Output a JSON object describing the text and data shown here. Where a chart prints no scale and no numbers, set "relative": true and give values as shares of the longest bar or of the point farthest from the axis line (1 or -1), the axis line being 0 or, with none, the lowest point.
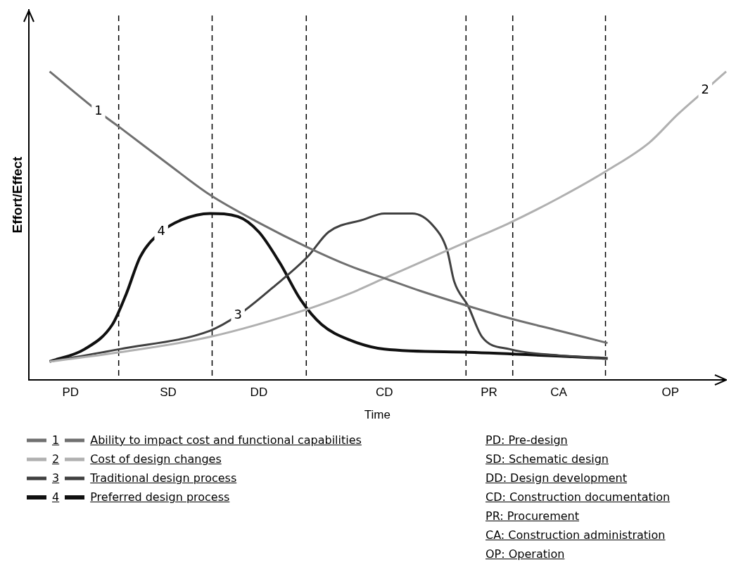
{
  "chart_data": {
    "type": "line",
    "relative": true,
    "xlabel": "Time",
    "ylabel": "Effort/Effect",
    "categories": [
      null,
      null,
      null,
      null,
      null,
      null,
      "PD",
      null,
      null,
      null,
      null,
      null,
      null,
      null,
      null,
      null,
      null,
      null,
      null,
      null,
      "SD",
      null,
      null,
      null,
      null,
      null,
      null,
      null,
      null,
      null,
      null,
      null,
      null,
      "DD",
      null,
      null,
      null,
      null,
      null,
      null,
      null,
      null,
      null,
      null,
      null,
      null,
      null,
      null,
      null,
      null,
      null,
      "CD",
      null,
      null,
      null,
      null,
      null,
      null,
      null,
      null,
      null,
      null,
      null,
      null,
      null,
      null,
      "PR",
      null,
      null,
      null,
      null,
      null,
      null,
      null,
      null,
      null,
      "CA",
      null,
      null,
      null,
      null,
      null,
      null,
      null,
      null,
      null,
      null,
      null,
      null,
      null,
      null,
      null,
      "OP",
      null,
      null,
      null,
      null,
      null,
      null,
      null,
      null
    ],
    "tick_labels": "x",
    "grid": false,
    "legend": "bottom",
    "marker": "none",
    "line_style": "solid",
    "series": [
      {
        "name": "1",
        "color": "#707070",
        "values": [
          null,
          null,
          null,
          1.0,
          null,
          null,
          null,
          null,
          null,
          null,
          0.87,
          null,
          null,
          0.82,
          null,
          null,
          null,
          null,
          null,
          null,
          0.7,
          null,
          null,
          null,
          null,
          null,
          0.6,
          null,
          null,
          null,
          null,
          null,
          null,
          0.51,
          null,
          null,
          null,
          null,
          null,
          null,
          0.43,
          null,
          null,
          null,
          null,
          null,
          0.37,
          null,
          null,
          null,
          null,
          0.33,
          null,
          null,
          null,
          null,
          0.29,
          null,
          null,
          null,
          null,
          null,
          null,
          0.24,
          null,
          null,
          null,
          null,
          null,
          0.2,
          null,
          null,
          null,
          null,
          null,
          null,
          0.16,
          null,
          null,
          null,
          null,
          null,
          null,
          0.12,
          null,
          null,
          null,
          null,
          null,
          null,
          null,
          null,
          null,
          null,
          null,
          null,
          null,
          null,
          null,
          null,
          null
        ]
      },
      {
        "name": "2",
        "color": "#b0b0b0",
        "values": [
          null,
          null,
          null,
          0.06,
          null,
          null,
          null,
          null,
          null,
          null,
          null,
          null,
          null,
          0.09,
          null,
          null,
          null,
          null,
          null,
          null,
          null,
          null,
          null,
          null,
          null,
          null,
          0.14,
          null,
          null,
          null,
          null,
          null,
          null,
          null,
          null,
          null,
          null,
          null,
          null,
          null,
          0.23,
          null,
          null,
          null,
          null,
          null,
          0.28,
          null,
          null,
          null,
          null,
          0.33,
          null,
          null,
          null,
          null,
          0.38,
          null,
          null,
          null,
          null,
          null,
          null,
          0.45,
          null,
          null,
          null,
          null,
          null,
          0.51,
          null,
          null,
          null,
          null,
          null,
          null,
          0.59,
          null,
          null,
          null,
          null,
          null,
          null,
          0.68,
          null,
          null,
          null,
          null,
          null,
          0.77,
          null,
          null,
          null,
          0.86,
          null,
          null,
          null,
          0.94,
          null,
          null,
          1.0
        ]
      },
      {
        "name": "3",
        "color": "#404040",
        "values": [
          null,
          null,
          null,
          0.06,
          null,
          null,
          null,
          null,
          null,
          null,
          null,
          null,
          null,
          0.1,
          null,
          null,
          null,
          null,
          null,
          null,
          null,
          null,
          null,
          null,
          null,
          null,
          0.16,
          null,
          null,
          null,
          0.21,
          null,
          null,
          null,
          null,
          0.3,
          null,
          null,
          null,
          null,
          0.4,
          null,
          null,
          0.48,
          null,
          null,
          null,
          null,
          0.52,
          null,
          null,
          0.54,
          null,
          null,
          null,
          0.54,
          null,
          null,
          0.5,
          null,
          0.42,
          0.32,
          null,
          0.24,
          null,
          0.14,
          null,
          null,
          null,
          0.1,
          null,
          null,
          null,
          null,
          null,
          null,
          0.08,
          null,
          null,
          null,
          null,
          null,
          null,
          0.07,
          null,
          null,
          null,
          null,
          null,
          null,
          null,
          null,
          null,
          null,
          null,
          null,
          null,
          null,
          null,
          null,
          null
        ]
      },
      {
        "name": "4",
        "color": "#101010",
        "values": [
          null,
          null,
          null,
          0.06,
          null,
          null,
          null,
          null,
          0.1,
          null,
          null,
          null,
          0.18,
          null,
          0.28,
          null,
          0.4,
          null,
          null,
          0.48,
          null,
          null,
          0.52,
          null,
          null,
          null,
          0.54,
          null,
          null,
          null,
          0.53,
          null,
          null,
          0.48,
          null,
          null,
          0.38,
          null,
          null,
          0.26,
          null,
          null,
          0.18,
          null,
          null,
          null,
          0.13,
          null,
          null,
          null,
          null,
          0.1,
          null,
          null,
          null,
          null,
          null,
          null,
          null,
          null,
          null,
          null,
          null,
          0.09,
          null,
          null,
          null,
          null,
          null,
          null,
          null,
          null,
          null,
          null,
          null,
          null,
          null,
          null,
          null,
          null,
          null,
          null,
          null,
          0.07,
          null,
          null,
          null,
          null,
          null,
          null,
          null,
          null,
          null,
          null,
          null,
          null,
          null,
          null,
          null,
          null,
          null
        ]
      }
    ],
    "annotations": [
      "Ability to impact cost and functional capabilities",
      "Cost of design changes",
      "Traditional design process",
      "Preferred design process",
      "PD: Pre-design",
      "SD: Schematic design",
      "DD: Design development",
      "CD: Construction documentation",
      "PR: Procurement",
      "CA: Construction administration",
      "OP: Operation"
    ]
  }
}
